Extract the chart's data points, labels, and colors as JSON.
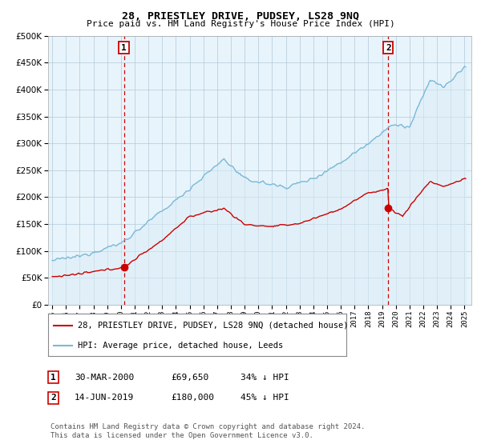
{
  "title": "28, PRIESTLEY DRIVE, PUDSEY, LS28 9NQ",
  "subtitle": "Price paid vs. HM Land Registry's House Price Index (HPI)",
  "ytick_values": [
    0,
    50000,
    100000,
    150000,
    200000,
    250000,
    300000,
    350000,
    400000,
    450000,
    500000
  ],
  "ylim": [
    0,
    500000
  ],
  "xlim_start": 1994.7,
  "xlim_end": 2025.5,
  "xtick_years": [
    1995,
    1996,
    1997,
    1998,
    1999,
    2000,
    2001,
    2002,
    2003,
    2004,
    2005,
    2006,
    2007,
    2008,
    2009,
    2010,
    2011,
    2012,
    2013,
    2014,
    2015,
    2016,
    2017,
    2018,
    2019,
    2020,
    2021,
    2022,
    2023,
    2024,
    2025
  ],
  "hpi_color": "#7ab8d9",
  "hpi_fill_color": "#dceef7",
  "price_color": "#cc0000",
  "marker_color": "#cc0000",
  "vline_color": "#cc0000",
  "sale1_x": 2000.22,
  "sale1_y": 69650,
  "sale1_label": "1",
  "sale2_x": 2019.45,
  "sale2_y": 180000,
  "sale2_label": "2",
  "legend_line1": "28, PRIESTLEY DRIVE, PUDSEY, LS28 9NQ (detached house)",
  "legend_line2": "HPI: Average price, detached house, Leeds",
  "background_color": "#ffffff",
  "chart_bg_color": "#e8f4fb",
  "grid_color": "#b0c8d8"
}
